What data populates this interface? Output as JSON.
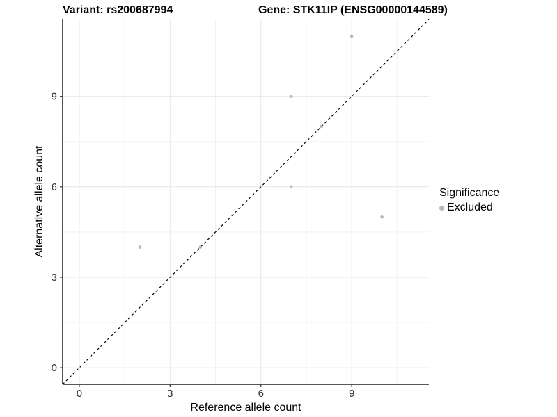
{
  "header": {
    "variant_title": "Variant: rs200687994",
    "gene_title": "Gene: STK11IP (ENSG00000144589)"
  },
  "chart_data": {
    "type": "scatter",
    "title_left": "Variant: rs200687994",
    "title_right": "Gene: STK11IP (ENSG00000144589)",
    "xlabel": "Reference allele count",
    "ylabel": "Alternative allele count",
    "x_ticks": [
      0,
      3,
      6,
      9
    ],
    "y_ticks": [
      0,
      3,
      6,
      9
    ],
    "minor_ticks": [
      1.5,
      4.5,
      7.5,
      10.5
    ],
    "xlim": [
      -0.55,
      11.55
    ],
    "ylim": [
      -0.55,
      11.55
    ],
    "grid": true,
    "identity_line": {
      "equation": "y = x",
      "style": "dashed",
      "color": "#000000"
    },
    "series": [
      {
        "name": "Excluded",
        "color": "#b8b8b8",
        "points": [
          [
            2,
            4
          ],
          [
            4,
            4
          ],
          [
            7,
            6
          ],
          [
            7,
            9
          ],
          [
            8,
            8
          ],
          [
            9,
            11
          ],
          [
            10,
            5
          ]
        ]
      }
    ],
    "legend": {
      "title": "Significance",
      "position": "right",
      "items": [
        {
          "label": "Excluded",
          "color": "#b8b8b8"
        }
      ]
    },
    "colors": {
      "axis_line": "#404040",
      "tick_label": "#303030",
      "gridline_major": "#e7e7e7",
      "gridline_minor": "#f2f2f2",
      "point": "#b8b8b8"
    }
  }
}
